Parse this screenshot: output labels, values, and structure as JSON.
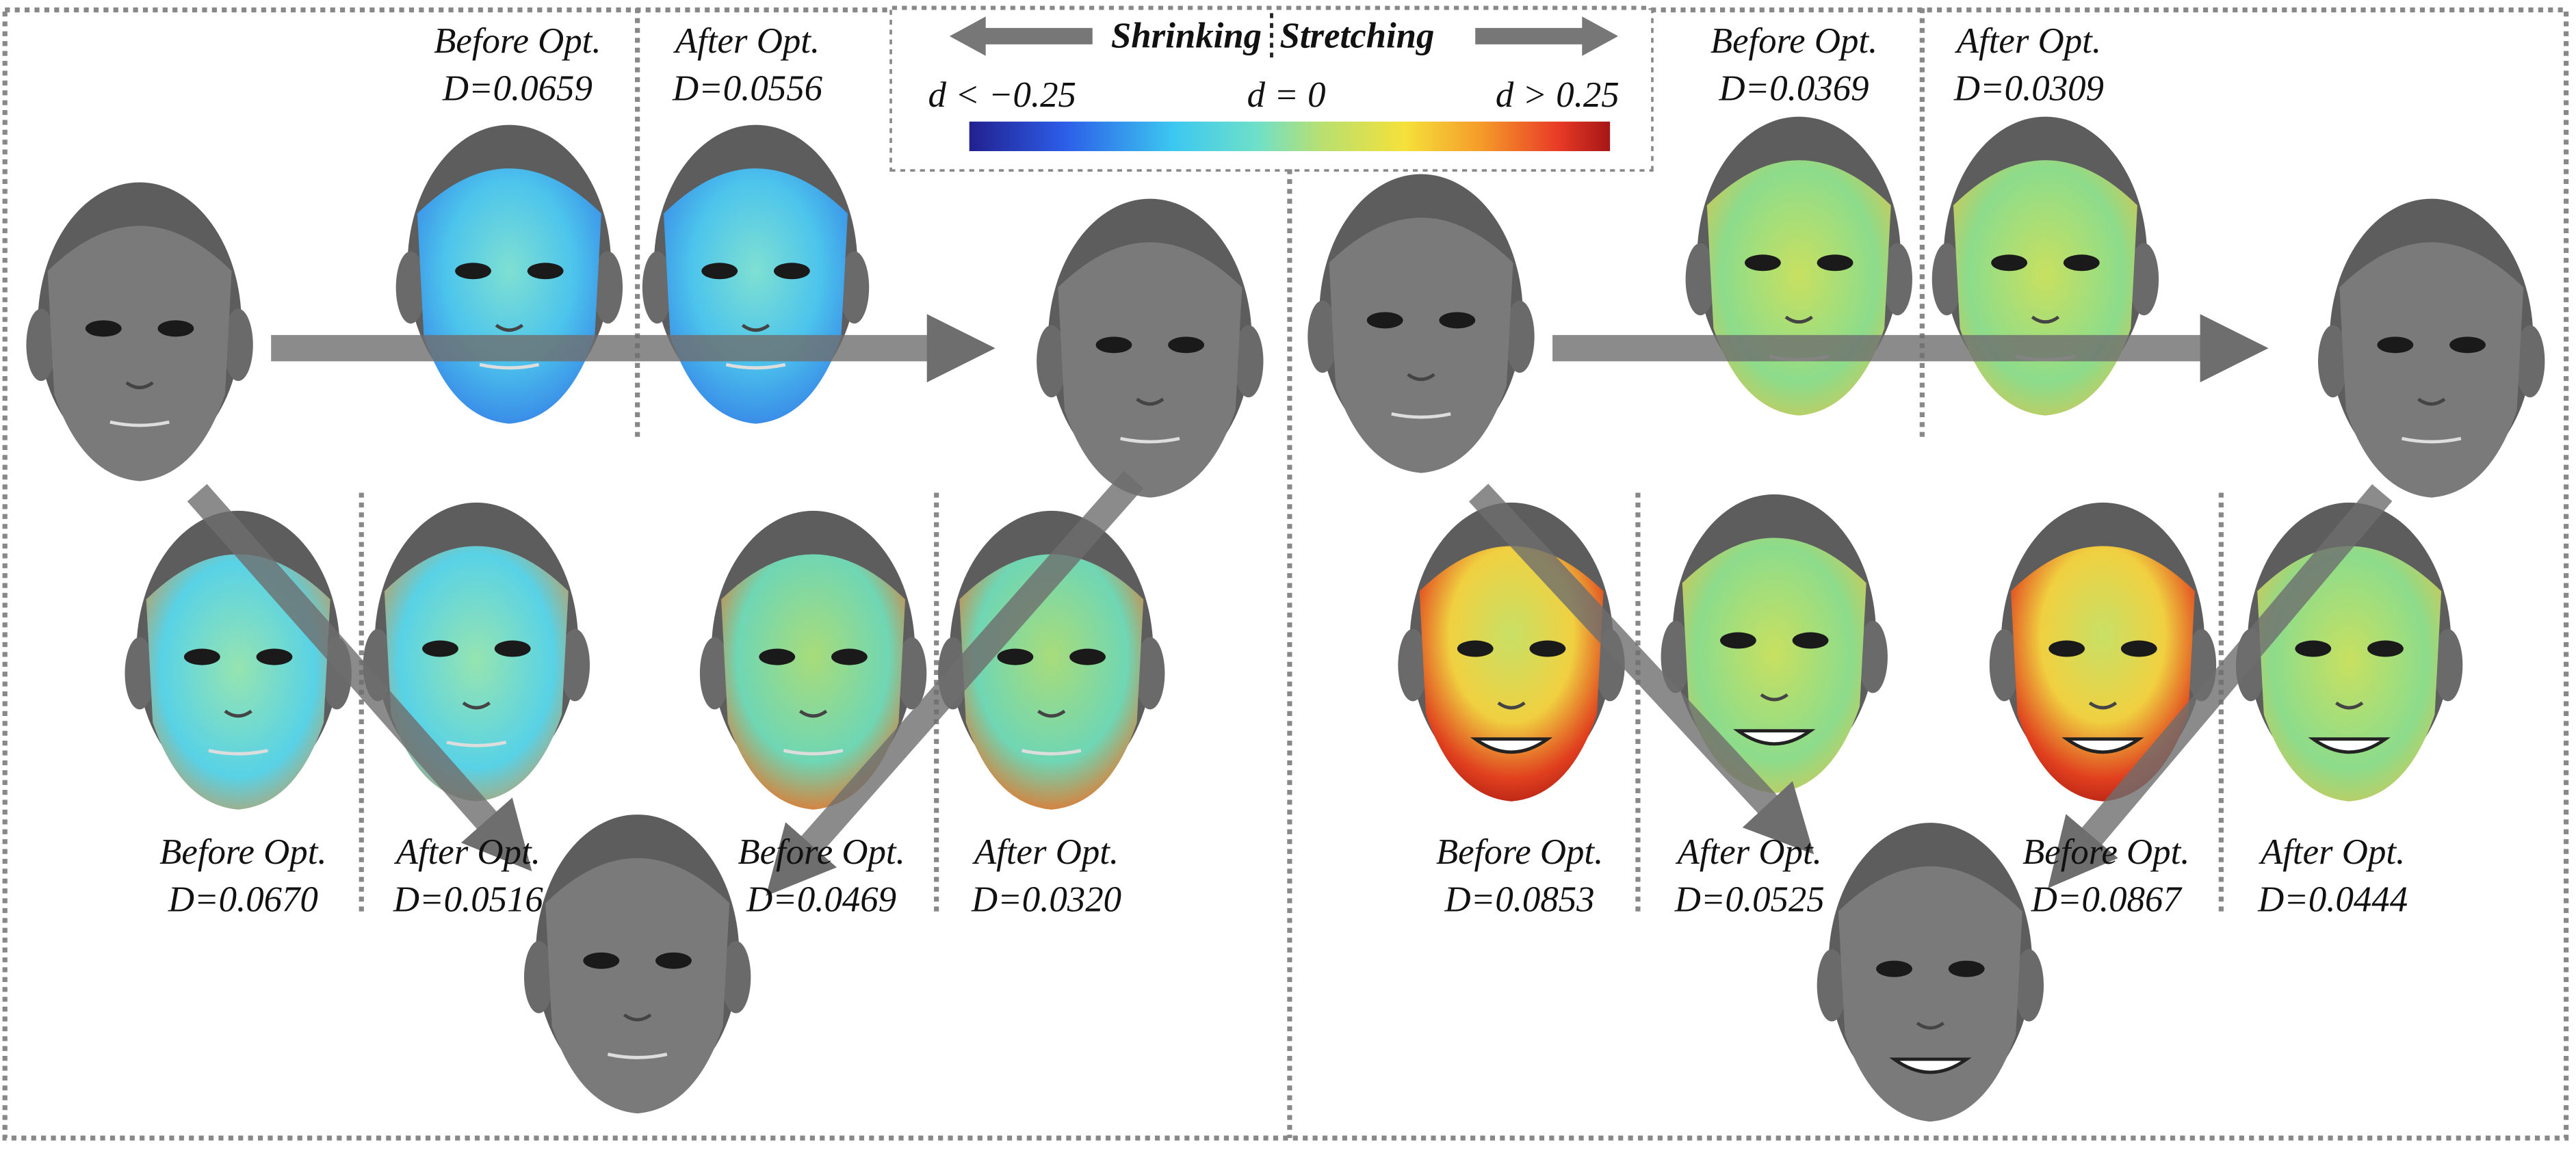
{
  "legend": {
    "shrinking": "Shrinking",
    "stretching": "Stretching",
    "left_label": "d < −0.25",
    "mid_label": "d = 0",
    "right_label": "d > 0.25"
  },
  "panels": [
    {
      "top": [
        {
          "title": "Before Opt.",
          "metric": "D=0.0659"
        },
        {
          "title": "After Opt.",
          "metric": "D=0.0556"
        }
      ],
      "bottom": [
        {
          "title": "Before Opt.",
          "metric": "D=0.0670"
        },
        {
          "title": "After Opt.",
          "metric": "D=0.0516"
        },
        {
          "title": "Before Opt.",
          "metric": "D=0.0469"
        },
        {
          "title": "After Opt.",
          "metric": "D=0.0320"
        }
      ]
    },
    {
      "top": [
        {
          "title": "Before Opt.",
          "metric": "D=0.0369"
        },
        {
          "title": "After Opt.",
          "metric": "D=0.0309"
        }
      ],
      "bottom": [
        {
          "title": "Before Opt.",
          "metric": "D=0.0853"
        },
        {
          "title": "After Opt.",
          "metric": "D=0.0525"
        },
        {
          "title": "Before Opt.",
          "metric": "D=0.0867"
        },
        {
          "title": "After Opt.",
          "metric": "D=0.0444"
        }
      ]
    }
  ]
}
